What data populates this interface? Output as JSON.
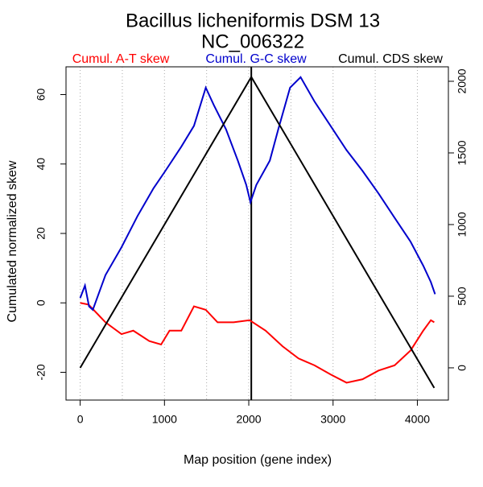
{
  "chart_data": {
    "type": "line",
    "title": "Bacillus licheniformis DSM 13",
    "subtitle": "NC_006322",
    "x_label": "Map position (gene index)",
    "y_label": "Cumulated normalized skew",
    "xlim": [
      -168,
      4368
    ],
    "ylim": [
      -28,
      68
    ],
    "y2lim": [
      -225,
      2101
    ],
    "xticks": [
      0,
      1000,
      2000,
      3000,
      4000
    ],
    "yticks": [
      -20,
      0,
      20,
      40,
      60
    ],
    "y2ticks": [
      0,
      500,
      1000,
      1500,
      2000
    ],
    "xgrid": [
      0,
      500,
      1000,
      1500,
      2000,
      2500,
      3000,
      3500,
      4000
    ],
    "vline": 2030,
    "series": [
      {
        "name": "Cumul. A-T skew",
        "color": "#ff0000",
        "x": [
          0,
          100,
          300,
          490,
          630,
          820,
          960,
          1060,
          1200,
          1350,
          1490,
          1630,
          1820,
          2010,
          2200,
          2400,
          2590,
          2780,
          2970,
          3160,
          3350,
          3540,
          3730,
          3920,
          4070,
          4160,
          4200
        ],
        "values": [
          0,
          -0.5,
          -5.6,
          -9,
          -8,
          -11,
          -12,
          -8,
          -8,
          -1,
          -2,
          -5.6,
          -5.6,
          -5,
          -8,
          -12.5,
          -16,
          -18,
          -20.6,
          -23,
          -22,
          -19.5,
          -18,
          -13.7,
          -8,
          -5,
          -5.6
        ]
      },
      {
        "name": "Cumul. G-C skew",
        "color": "#0000cc",
        "x": [
          0,
          57,
          105,
          150,
          300,
          490,
          680,
          870,
          1010,
          1200,
          1350,
          1490,
          1585,
          1730,
          1870,
          1970,
          2020,
          2090,
          2250,
          2350,
          2490,
          2615,
          2780,
          2970,
          3160,
          3350,
          3540,
          3730,
          3920,
          4070,
          4160,
          4210
        ],
        "values": [
          1.4,
          5,
          -1,
          -2,
          8,
          16,
          25,
          33,
          38,
          45,
          51,
          62,
          57,
          50,
          41,
          34,
          29,
          34,
          41,
          50,
          62,
          65,
          58,
          51,
          44,
          38,
          31.5,
          24.5,
          17.6,
          10.7,
          6,
          2.5
        ]
      },
      {
        "name": "Cumul. CDS skew",
        "color": "#000000",
        "axis": "y2",
        "x": [
          0,
          2030,
          4200
        ],
        "values": [
          0,
          2030,
          -140
        ]
      }
    ]
  }
}
